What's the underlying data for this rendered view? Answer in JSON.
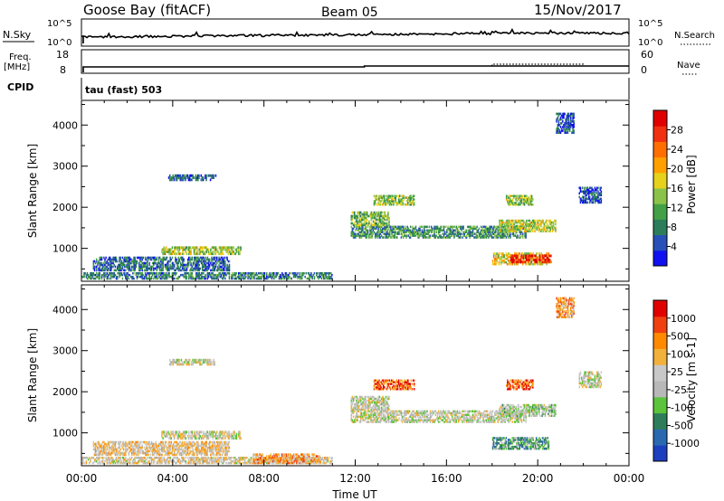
{
  "header": {
    "station": "Goose Bay (fitACF)",
    "beam": "Beam 05",
    "date": "15/Nov/2017"
  },
  "params": {
    "nsky_label": "N.Sky",
    "nsearch_label": "N.Search",
    "nsky_ticks": [
      "10^5",
      "10^0"
    ],
    "nsearch_ticks": [
      "10^5",
      "10^0"
    ],
    "freq_label": "Freq.",
    "freq_unit": "[MHz]",
    "freq_ticks": [
      "18",
      "8"
    ],
    "nave_label": "Nave",
    "nave_ticks": [
      "60",
      "0"
    ],
    "cpid_label": "CPID",
    "cpid_value": "tau (fast) 503"
  },
  "chart_data": [
    {
      "type": "heatmap",
      "name": "power-panel",
      "ylabel": "Slant Range [km]",
      "xlabel": "",
      "x_range": [
        0,
        24
      ],
      "ylim": [
        200,
        4600
      ],
      "y_ticks": [
        "1000",
        "2000",
        "3000",
        "4000"
      ],
      "colorbar": {
        "label": "Power [dB]",
        "ticks": [
          "4",
          "8",
          "12",
          "16",
          "20",
          "24",
          "28"
        ],
        "colors": [
          "#1010f0",
          "#2850b8",
          "#2e7d5a",
          "#43a047",
          "#8bc34a",
          "#e6d11c",
          "#ffa000",
          "#ff6e00",
          "#f03010",
          "#e00000"
        ]
      },
      "regions": [
        {
          "t0": 0.0,
          "t1": 11.0,
          "r0": 250,
          "r1": 420,
          "level": 0.25
        },
        {
          "t0": 0.5,
          "t1": 6.5,
          "r0": 450,
          "r1": 800,
          "level": 0.2
        },
        {
          "t0": 3.5,
          "t1": 7.0,
          "r0": 850,
          "r1": 1050,
          "level": 0.45
        },
        {
          "t0": 3.8,
          "t1": 5.9,
          "r0": 2650,
          "r1": 2800,
          "level": 0.2
        },
        {
          "t0": 11.8,
          "t1": 19.5,
          "r0": 1250,
          "r1": 1550,
          "level": 0.3
        },
        {
          "t0": 11.8,
          "t1": 13.5,
          "r0": 1550,
          "r1": 1900,
          "level": 0.4
        },
        {
          "t0": 12.8,
          "t1": 14.6,
          "r0": 2050,
          "r1": 2300,
          "level": 0.45
        },
        {
          "t0": 18.3,
          "t1": 20.8,
          "r0": 1400,
          "r1": 1700,
          "level": 0.5
        },
        {
          "t0": 18.0,
          "t1": 20.5,
          "r0": 600,
          "r1": 900,
          "level": 0.55
        },
        {
          "t0": 18.8,
          "t1": 20.6,
          "r0": 650,
          "r1": 850,
          "level": 0.9
        },
        {
          "t0": 18.6,
          "t1": 19.8,
          "r0": 2050,
          "r1": 2300,
          "level": 0.45
        },
        {
          "t0": 21.8,
          "t1": 22.8,
          "r0": 2100,
          "r1": 2500,
          "level": 0.15
        },
        {
          "t0": 20.8,
          "t1": 21.6,
          "r0": 3800,
          "r1": 4300,
          "level": 0.15
        }
      ]
    },
    {
      "type": "heatmap",
      "name": "velocity-panel",
      "ylabel": "Slant Range [km]",
      "xlabel": "Time UT",
      "x_ticks": [
        "00:00",
        "04:00",
        "08:00",
        "12:00",
        "16:00",
        "20:00",
        "00:00"
      ],
      "x_range": [
        0,
        24
      ],
      "ylim": [
        200,
        4600
      ],
      "y_ticks": [
        "1000",
        "2000",
        "3000",
        "4000"
      ],
      "colorbar": {
        "label": "Velocity [m s-1]",
        "ticks": [
          "1000",
          "500",
          "100",
          "25",
          "-25",
          "-100",
          "-500",
          "-1000"
        ],
        "colors": [
          "#1b3fbf",
          "#2a68b0",
          "#2e7d5a",
          "#5cc43a",
          "#b8b8b8",
          "#c8c8c8",
          "#f2b13a",
          "#ff8a00",
          "#f04010",
          "#e00000"
        ]
      },
      "regions": [
        {
          "t0": 0.0,
          "t1": 11.0,
          "r0": 250,
          "r1": 420,
          "level": 0.55
        },
        {
          "t0": 0.5,
          "t1": 6.5,
          "r0": 450,
          "r1": 800,
          "level": 0.6
        },
        {
          "t0": 3.5,
          "t1": 7.0,
          "r0": 850,
          "r1": 1050,
          "level": 0.5
        },
        {
          "t0": 3.8,
          "t1": 5.9,
          "r0": 2650,
          "r1": 2800,
          "level": 0.5
        },
        {
          "t0": 7.5,
          "t1": 10.5,
          "r0": 250,
          "r1": 500,
          "level": 0.7
        },
        {
          "t0": 11.8,
          "t1": 19.5,
          "r0": 1250,
          "r1": 1550,
          "level": 0.5
        },
        {
          "t0": 11.8,
          "t1": 13.5,
          "r0": 1550,
          "r1": 1900,
          "level": 0.5
        },
        {
          "t0": 12.8,
          "t1": 14.6,
          "r0": 2050,
          "r1": 2300,
          "level": 0.8
        },
        {
          "t0": 18.3,
          "t1": 20.8,
          "r0": 1400,
          "r1": 1700,
          "level": 0.45
        },
        {
          "t0": 18.0,
          "t1": 20.5,
          "r0": 600,
          "r1": 900,
          "level": 0.3
        },
        {
          "t0": 18.6,
          "t1": 19.8,
          "r0": 2050,
          "r1": 2300,
          "level": 0.8
        },
        {
          "t0": 21.8,
          "t1": 22.8,
          "r0": 2100,
          "r1": 2500,
          "level": 0.5
        },
        {
          "t0": 20.8,
          "t1": 21.6,
          "r0": 3800,
          "r1": 4300,
          "level": 0.7
        }
      ]
    }
  ]
}
